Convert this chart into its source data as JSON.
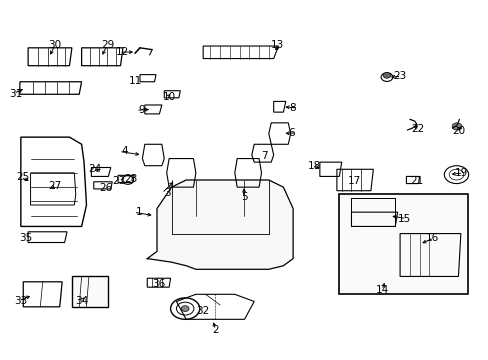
{
  "bg_color": "#ffffff",
  "fig_width": 4.89,
  "fig_height": 3.6,
  "dpi": 100,
  "line_color": "#000000",
  "text_color": "#000000",
  "font_size": 7.5
}
